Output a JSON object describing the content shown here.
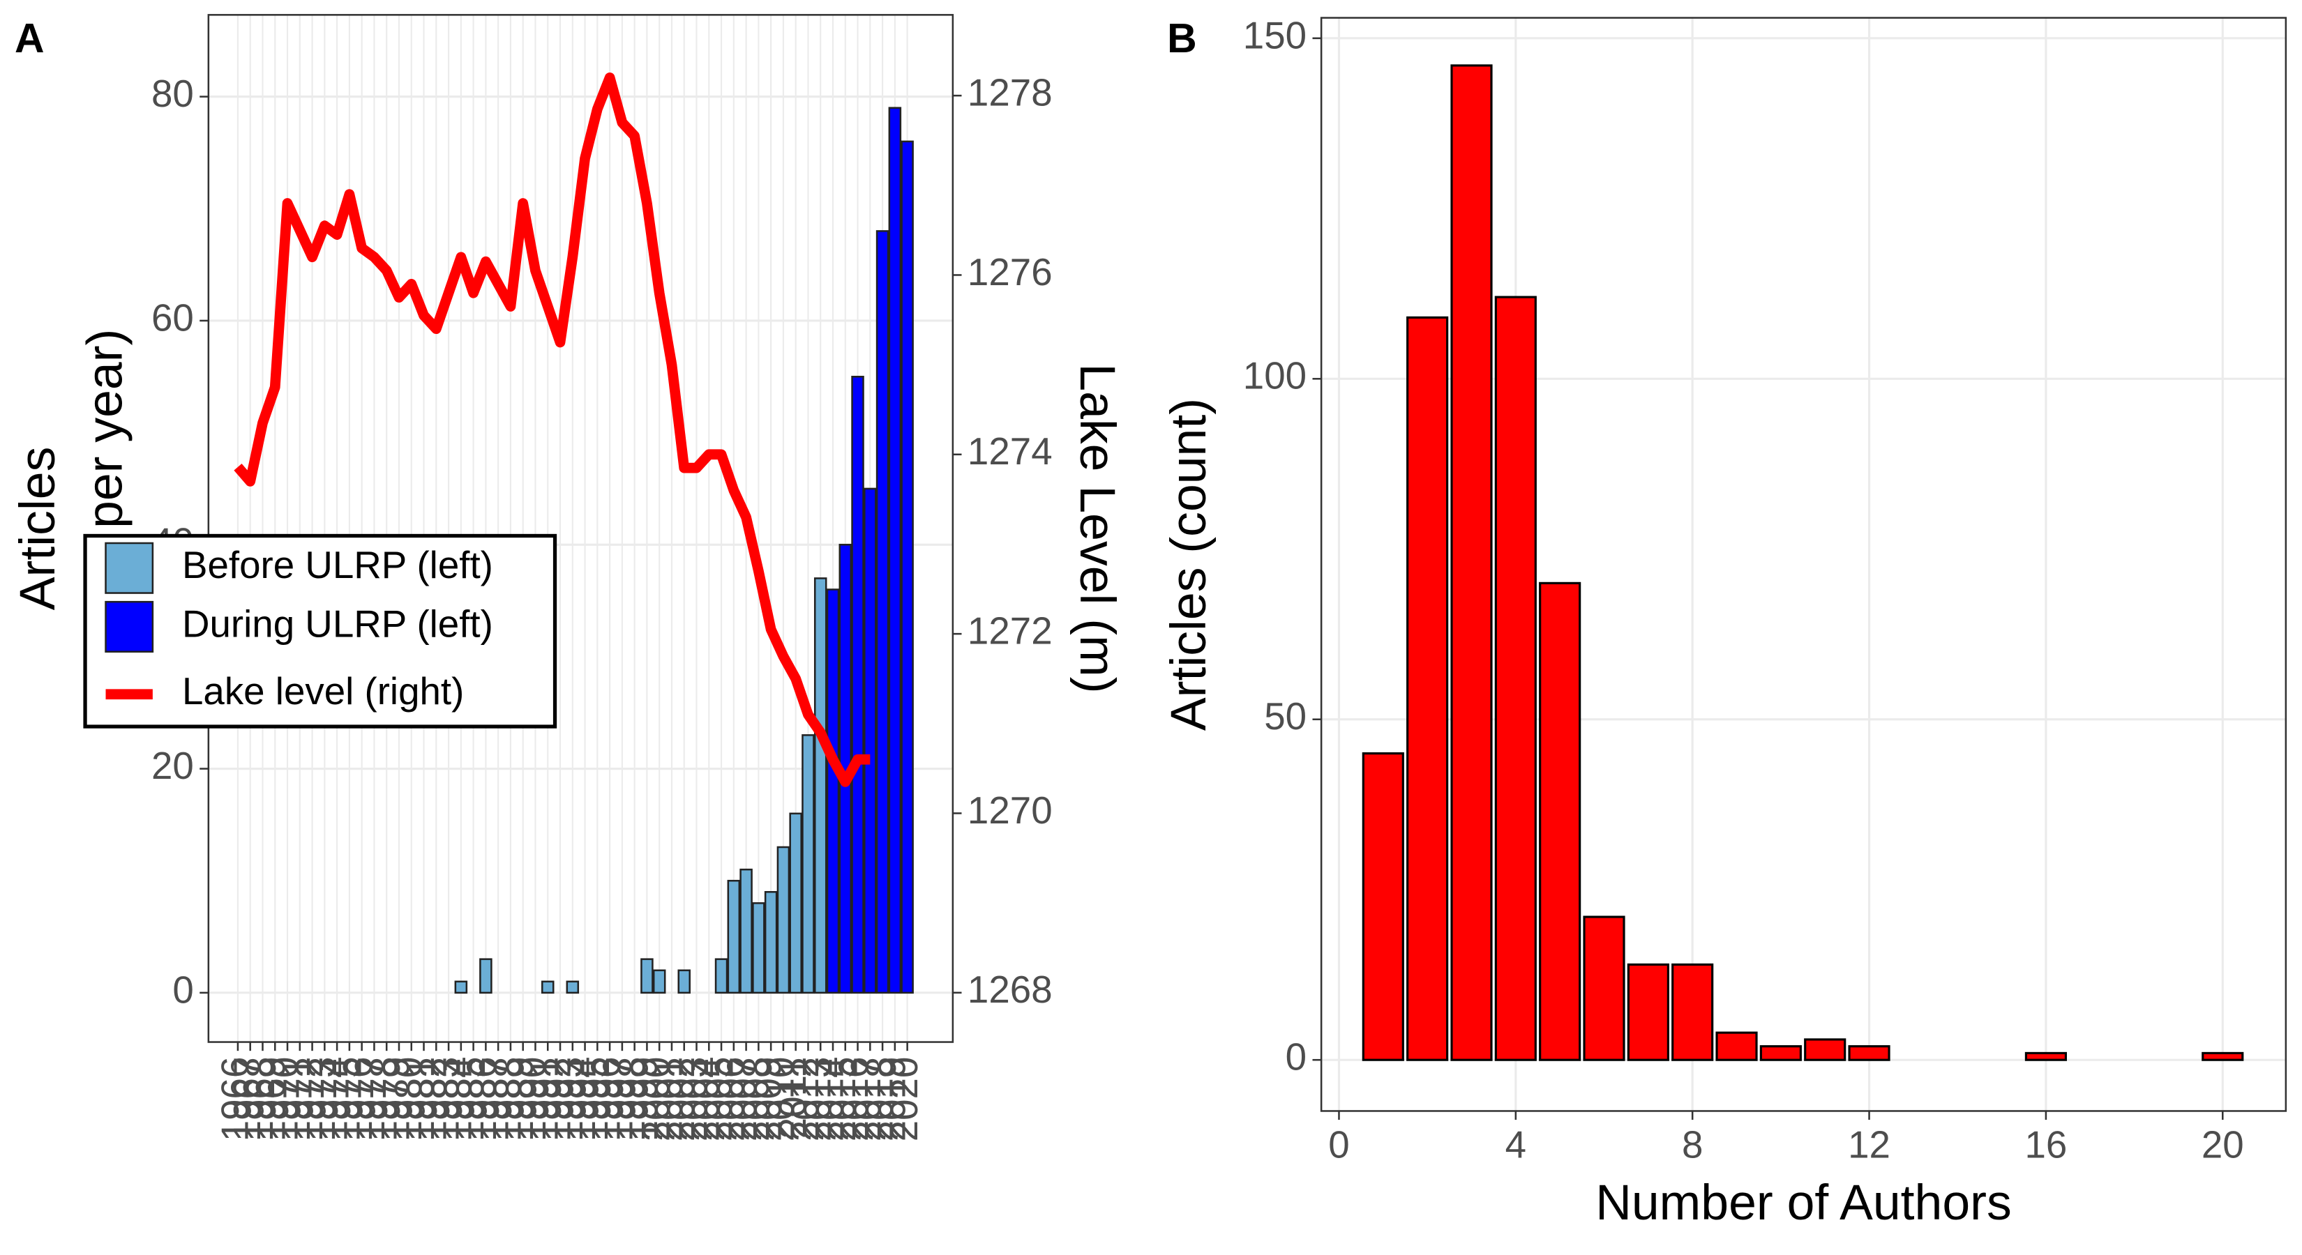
{
  "chart_data": [
    {
      "type": "bar",
      "panel_label": "A",
      "ylabel": [
        "Articles",
        "(number per year)"
      ],
      "y2label": "Lake Level (m)",
      "categories": [
        "1966",
        "1967",
        "1968",
        "1969",
        "1970",
        "1971",
        "1972",
        "1973",
        "1974",
        "1975",
        "1976",
        "1977",
        "1978",
        "1979",
        "1980",
        "1981",
        "1982",
        "1983",
        "1984",
        "1985",
        "1986",
        "1987",
        "1988",
        "1989",
        "1990",
        "1991",
        "1992",
        "1993",
        "1994",
        "1995",
        "1996",
        "1997",
        "1998",
        "1999",
        "2000",
        "2001",
        "2002",
        "2003",
        "2004",
        "2005",
        "2006",
        "2007",
        "2008",
        "2009",
        "2010",
        "2011",
        "2012",
        "2013",
        "2014",
        "2015",
        "2016",
        "2017",
        "2018",
        "2019",
        "2020"
      ],
      "series": [
        {
          "name": "Before ULRP (left)",
          "color": "#6baed6",
          "values": [
            null,
            null,
            null,
            null,
            null,
            null,
            null,
            null,
            null,
            null,
            null,
            null,
            null,
            null,
            null,
            null,
            null,
            null,
            1,
            null,
            3,
            null,
            null,
            null,
            null,
            1,
            null,
            1,
            null,
            null,
            null,
            null,
            null,
            3,
            2,
            null,
            2,
            null,
            null,
            3,
            10,
            11,
            8,
            9,
            13,
            16,
            23,
            37,
            null,
            null,
            null,
            null,
            null,
            null,
            null
          ]
        },
        {
          "name": "During ULRP (left)",
          "color": "#0000ff",
          "values": [
            null,
            null,
            null,
            null,
            null,
            null,
            null,
            null,
            null,
            null,
            null,
            null,
            null,
            null,
            null,
            null,
            null,
            null,
            null,
            null,
            null,
            null,
            null,
            null,
            null,
            null,
            null,
            null,
            null,
            null,
            null,
            null,
            null,
            null,
            null,
            null,
            null,
            null,
            null,
            null,
            null,
            null,
            null,
            null,
            null,
            null,
            null,
            null,
            36,
            40,
            55,
            45,
            68,
            79,
            76
          ]
        },
        {
          "name": "Lake level (right)",
          "color": "#ff0000",
          "axis": "y2",
          "type": "line",
          "values": [
            1273.86,
            1273.7,
            1274.35,
            1274.75,
            1276.8,
            1276.5,
            1276.2,
            1276.55,
            1276.45,
            1276.9,
            1276.3,
            1276.2,
            1276.05,
            1275.75,
            1275.9,
            1275.55,
            1275.4,
            1275.8,
            1276.2,
            1275.8,
            1276.15,
            1275.9,
            1275.65,
            1276.8,
            1276.05,
            1275.65,
            1275.25,
            1276.2,
            1277.3,
            1277.85,
            1278.2,
            1277.7,
            1277.55,
            1276.8,
            1275.8,
            1275.0,
            1273.85,
            1273.85,
            1274.0,
            1274.0,
            1273.6,
            1273.3,
            1272.7,
            1272.05,
            1271.75,
            1271.5,
            1271.1,
            1270.9,
            1270.6,
            1270.35,
            1270.6,
            1270.6,
            null,
            null,
            null
          ]
        }
      ],
      "ylim": [
        -4.4,
        87.3
      ],
      "yticks": [
        0,
        20,
        40,
        60,
        80
      ],
      "y2lim": [
        1267.45,
        1278.9
      ],
      "y2ticks": [
        1268,
        1270,
        1272,
        1274,
        1276,
        1278
      ],
      "grid": true,
      "legend": "left"
    },
    {
      "type": "bar",
      "panel_label": "B",
      "xlabel": "Number of Authors",
      "ylabel": "Articles (count)",
      "x": [
        1,
        2,
        3,
        4,
        5,
        6,
        7,
        8,
        9,
        10,
        11,
        12,
        16,
        20
      ],
      "values": [
        45,
        109,
        146,
        112,
        70,
        21,
        14,
        14,
        4,
        2,
        3,
        2,
        1,
        1
      ],
      "color": "#ff0000",
      "xlim": [
        -0.4,
        21.43
      ],
      "xticks": [
        0,
        4,
        8,
        12,
        16,
        20
      ],
      "ylim": [
        -7.5,
        153
      ],
      "yticks": [
        0,
        50,
        100,
        150
      ],
      "grid": true
    }
  ]
}
